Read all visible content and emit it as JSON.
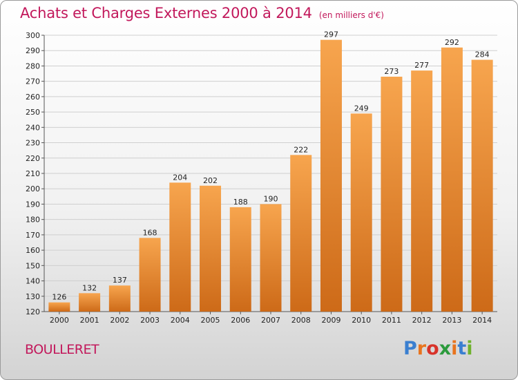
{
  "header": {
    "title": "Achats et Charges Externes 2000 à 2014",
    "subtitle": "(en milliers d'€)"
  },
  "footer": {
    "place": "BOULLERET",
    "brand": "Proxiti",
    "brand_colors": [
      "#3a7fd0",
      "#e8741e",
      "#d8332a",
      "#2b9a3c",
      "#e8741e",
      "#3a7fd0",
      "#6fb22d"
    ]
  },
  "colors": {
    "bar_light": "#f7a54e",
    "bar_dark": "#cd6a18",
    "title": "#c2185b"
  },
  "chart_data": {
    "type": "bar",
    "title": "Achats et Charges Externes 2000 à 2014",
    "subtitle": "(en milliers d'€)",
    "categories": [
      "2000",
      "2001",
      "2002",
      "2003",
      "2004",
      "2005",
      "2006",
      "2007",
      "2008",
      "2009",
      "2010",
      "2011",
      "2012",
      "2013",
      "2014"
    ],
    "values": [
      126,
      132,
      137,
      168,
      204,
      202,
      188,
      190,
      222,
      297,
      249,
      273,
      277,
      292,
      284
    ],
    "xlabel": "",
    "ylabel": "",
    "ylim": [
      120,
      300
    ],
    "yticks": [
      120,
      130,
      140,
      150,
      160,
      170,
      180,
      190,
      200,
      210,
      220,
      230,
      240,
      250,
      260,
      270,
      280,
      290,
      300
    ],
    "grid": true,
    "data_labels": true
  }
}
